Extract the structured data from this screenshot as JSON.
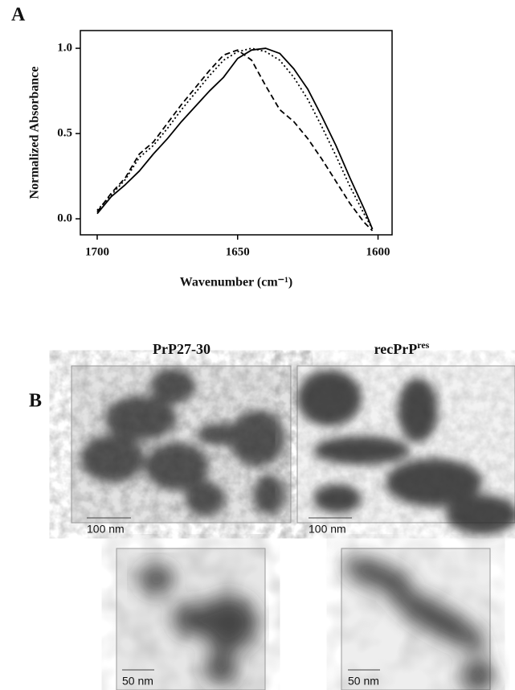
{
  "panel_labels": [
    "A",
    "B"
  ],
  "chart_data": {
    "type": "line",
    "y_label": "Normalized Absorbance",
    "x_label": "Wavenumber (cm⁻¹)",
    "x": [
      1700,
      1695,
      1690,
      1685,
      1680,
      1675,
      1670,
      1665,
      1660,
      1655,
      1650,
      1645,
      1640,
      1635,
      1630,
      1625,
      1620,
      1615,
      1610,
      1605,
      1602
    ],
    "series": [
      {
        "color": "#000000",
        "dash": "solid",
        "values": [
          0.03,
          0.13,
          0.2,
          0.28,
          0.38,
          0.47,
          0.57,
          0.66,
          0.75,
          0.83,
          0.94,
          0.99,
          1.0,
          0.97,
          0.88,
          0.76,
          0.6,
          0.43,
          0.24,
          0.06,
          -0.06
        ]
      },
      {
        "color": "#000000",
        "dash": "dotted",
        "values": [
          0.05,
          0.14,
          0.23,
          0.36,
          0.43,
          0.53,
          0.64,
          0.74,
          0.84,
          0.93,
          0.98,
          1.0,
          0.98,
          0.93,
          0.83,
          0.7,
          0.54,
          0.37,
          0.19,
          0.03,
          -0.06
        ]
      },
      {
        "color": "#000000",
        "dash": "dashed",
        "values": [
          0.04,
          0.15,
          0.24,
          0.38,
          0.45,
          0.56,
          0.67,
          0.77,
          0.87,
          0.96,
          0.99,
          0.93,
          0.78,
          0.64,
          0.57,
          0.47,
          0.35,
          0.22,
          0.09,
          -0.02,
          -0.07
        ]
      }
    ],
    "xlim": [
      1706,
      1595
    ],
    "xticks": [
      1700,
      1650,
      1600
    ],
    "ylim": [
      -0.094,
      1.104
    ],
    "yticks": [
      {
        "value": 0,
        "label": "0.0"
      },
      {
        "value": 0.5,
        "label": "0.5"
      },
      {
        "value": 1,
        "label": "1.0"
      }
    ]
  },
  "panel_b": {
    "titles": [
      {
        "text": "PrP27-30"
      },
      {
        "text": "recPrP",
        "sup": "res"
      }
    ],
    "scale_bars": [
      "100 nm",
      "100 nm",
      "50 nm",
      "50 nm"
    ]
  }
}
